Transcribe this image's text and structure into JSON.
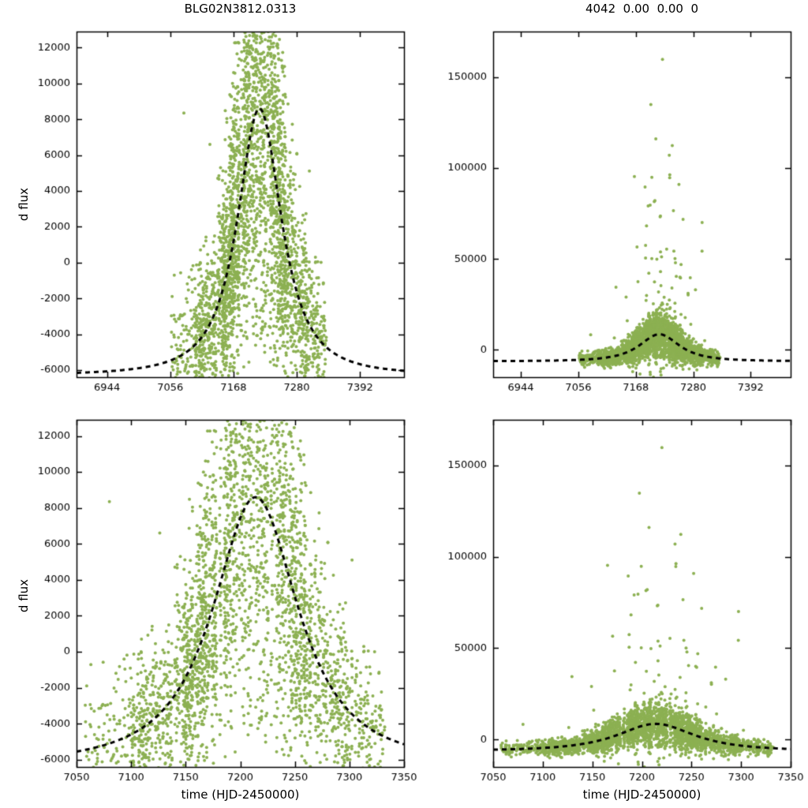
{
  "page": {
    "background": "#ffffff"
  },
  "chart_data": [
    {
      "id": "top-left",
      "type": "scatter",
      "title": "BLG02N3812.0313",
      "xlabel": "",
      "ylabel": "d flux",
      "xlim": [
        6890,
        7470
      ],
      "ylim": [
        -6400,
        12900
      ],
      "xticks": [
        6944,
        7056,
        7168,
        7280,
        7392
      ],
      "yticks": [
        -6000,
        -4000,
        -2000,
        0,
        2000,
        4000,
        6000,
        8000,
        10000,
        12000
      ],
      "grid": false,
      "legend": "none",
      "series": [
        {
          "name": "difference-flux-data",
          "type": "scatter",
          "color": "#8CB052"
        },
        {
          "name": "microlensing-model-curve",
          "type": "line",
          "style": "dashed",
          "color": "#000000"
        }
      ]
    },
    {
      "id": "top-right",
      "type": "scatter",
      "title": "4042  0.00  0.00  0",
      "xlabel": "",
      "ylabel": "",
      "xlim": [
        6890,
        7470
      ],
      "ylim": [
        -15000,
        175000
      ],
      "xticks": [
        6944,
        7056,
        7168,
        7280,
        7392
      ],
      "yticks": [
        0,
        50000,
        100000,
        150000
      ],
      "grid": false,
      "legend": "none",
      "series": [
        {
          "name": "difference-flux-data",
          "type": "scatter",
          "color": "#8CB052"
        },
        {
          "name": "microlensing-model-curve",
          "type": "line",
          "style": "dashed",
          "color": "#000000"
        }
      ]
    },
    {
      "id": "bottom-left",
      "type": "scatter",
      "title": "",
      "xlabel": "time (HJD-2450000)",
      "ylabel": "d flux",
      "xlim": [
        7050,
        7350
      ],
      "ylim": [
        -6400,
        12900
      ],
      "xticks": [
        7050,
        7100,
        7150,
        7200,
        7250,
        7300,
        7350
      ],
      "yticks": [
        -6000,
        -4000,
        -2000,
        0,
        2000,
        4000,
        6000,
        8000,
        10000,
        12000
      ],
      "grid": false,
      "legend": "none",
      "series": [
        {
          "name": "difference-flux-data",
          "type": "scatter",
          "color": "#8CB052"
        },
        {
          "name": "microlensing-model-curve",
          "type": "line",
          "style": "dashed",
          "color": "#000000"
        }
      ]
    },
    {
      "id": "bottom-right",
      "type": "scatter",
      "title": "",
      "xlabel": "time (HJD-2450000)",
      "ylabel": "",
      "xlim": [
        7050,
        7350
      ],
      "ylim": [
        -15000,
        175000
      ],
      "xticks": [
        7050,
        7100,
        7150,
        7200,
        7250,
        7300,
        7350
      ],
      "yticks": [
        0,
        50000,
        100000,
        150000
      ],
      "grid": false,
      "legend": "none",
      "series": [
        {
          "name": "difference-flux-data",
          "type": "scatter",
          "color": "#8CB052"
        },
        {
          "name": "microlensing-model-curve",
          "type": "line",
          "style": "dashed",
          "color": "#000000"
        }
      ]
    }
  ],
  "generator": {
    "seed": 20150313,
    "model": {
      "shape": "generalized-lorentzian",
      "base": -6300,
      "amp": 14900,
      "t0": 7214,
      "width": 55,
      "power": 1.3,
      "peak_flux": 8600,
      "fwhm_days": 92
    },
    "noise": {
      "floor": 1300,
      "peak_extra": 5400,
      "width": 45
    },
    "spikes": {
      "prob_peak": 0.05,
      "width": 40,
      "max": 155000,
      "neg_prob": 0.006,
      "neg_min": 6000,
      "neg_extra": 22000
    },
    "nights": {
      "start": 7058,
      "end": 7332,
      "empty_prob": 0.08,
      "jitter": 0.55
    },
    "density": [
      {
        "from": 7058,
        "to": 7100,
        "nmin": 1,
        "nmax": 5
      },
      {
        "from": 7100,
        "to": 7148,
        "nmin": 6,
        "nmax": 16
      },
      {
        "from": 7148,
        "to": 7265,
        "nmin": 14,
        "nmax": 32
      },
      {
        "from": 7265,
        "to": 7306,
        "nmin": 5,
        "nmax": 14
      },
      {
        "from": 7306,
        "to": 7333,
        "nmin": 2,
        "nmax": 9
      }
    ]
  },
  "style": {
    "point_color": "#8CB052",
    "point_radius": 2,
    "model_color": "#000000",
    "model_line_width": 3,
    "model_dash": [
      6,
      5
    ],
    "axis_color": "#000000",
    "background": "#ffffff"
  }
}
